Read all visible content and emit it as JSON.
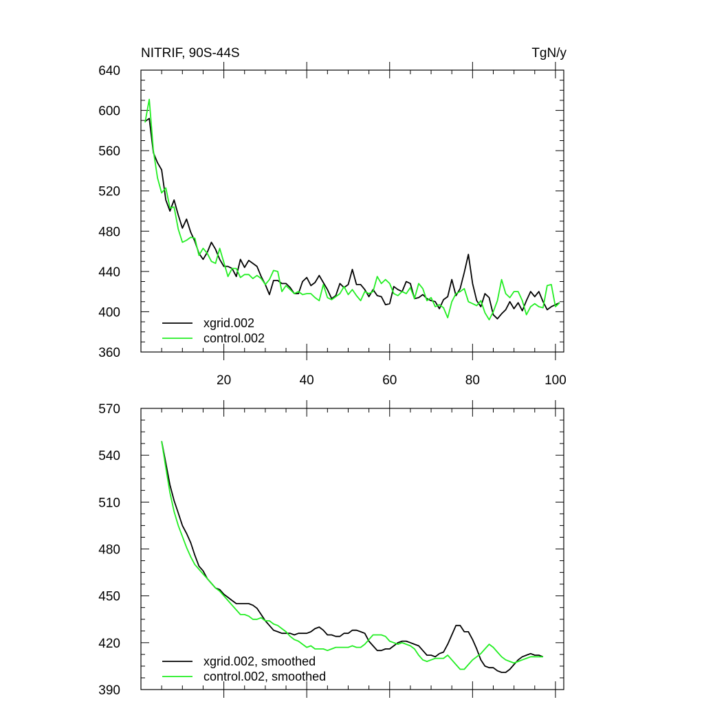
{
  "chart_data": [
    {
      "type": "line",
      "title_left": "NITRIF, 90S-44S",
      "title_right": "TgN/y",
      "xlabel": "",
      "ylabel": "",
      "xlim": [
        0,
        102
      ],
      "ylim": [
        360,
        640
      ],
      "xticks": [
        20,
        40,
        60,
        80,
        100
      ],
      "yticks": [
        360,
        400,
        440,
        480,
        520,
        560,
        600,
        640
      ],
      "x_tick_labels_shown": true,
      "legend_position": "bottom-left",
      "series": [
        {
          "name": "xgrid.002",
          "color": "#000000",
          "x": [
            1,
            2,
            3,
            4,
            5,
            6,
            7,
            8,
            9,
            10,
            11,
            12,
            13,
            14,
            15,
            16,
            17,
            18,
            19,
            20,
            21,
            22,
            23,
            24,
            25,
            26,
            27,
            28,
            29,
            30,
            31,
            32,
            33,
            34,
            35,
            36,
            37,
            38,
            39,
            40,
            41,
            42,
            43,
            44,
            45,
            46,
            47,
            48,
            49,
            50,
            51,
            52,
            53,
            54,
            55,
            56,
            57,
            58,
            59,
            60,
            61,
            62,
            63,
            64,
            65,
            66,
            67,
            68,
            69,
            70,
            71,
            72,
            73,
            74,
            75,
            76,
            77,
            78,
            79,
            80,
            81,
            82,
            83,
            84,
            85,
            86,
            87,
            88,
            89,
            90,
            91,
            92,
            93,
            94,
            95,
            96,
            97,
            98,
            99,
            100,
            101
          ],
          "values": [
            589,
            592,
            558,
            548,
            541,
            511,
            500,
            511,
            496,
            483,
            492,
            479,
            470,
            458,
            452,
            459,
            469,
            462,
            452,
            445,
            445,
            443,
            435,
            452,
            444,
            451,
            448,
            445,
            435,
            427,
            417,
            431,
            431,
            428,
            428,
            424,
            418,
            418,
            430,
            434,
            426,
            429,
            436,
            429,
            422,
            413,
            416,
            428,
            424,
            427,
            442,
            427,
            427,
            422,
            415,
            422,
            416,
            415,
            407,
            408,
            425,
            422,
            420,
            430,
            428,
            413,
            414,
            417,
            413,
            411,
            410,
            403,
            412,
            415,
            432,
            416,
            423,
            439,
            457,
            428,
            411,
            405,
            418,
            414,
            397,
            393,
            398,
            402,
            410,
            403,
            409,
            401,
            411,
            420,
            415,
            420,
            410,
            402,
            405,
            407,
            409
          ]
        },
        {
          "name": "control.002",
          "color": "#22ee22",
          "x": [
            1,
            2,
            3,
            4,
            5,
            6,
            7,
            8,
            9,
            10,
            11,
            12,
            13,
            14,
            15,
            16,
            17,
            18,
            19,
            20,
            21,
            22,
            23,
            24,
            25,
            26,
            27,
            28,
            29,
            30,
            31,
            32,
            33,
            34,
            35,
            36,
            37,
            38,
            39,
            40,
            41,
            42,
            43,
            44,
            45,
            46,
            47,
            48,
            49,
            50,
            51,
            52,
            53,
            54,
            55,
            56,
            57,
            58,
            59,
            60,
            61,
            62,
            63,
            64,
            65,
            66,
            67,
            68,
            69,
            70,
            71,
            72,
            73,
            74,
            75,
            76,
            77,
            78,
            79,
            80,
            81,
            82,
            83,
            84,
            85,
            86,
            87,
            88,
            89,
            90,
            91,
            92,
            93,
            94,
            95,
            96,
            97,
            98,
            99,
            100,
            101
          ],
          "values": [
            588,
            611,
            560,
            533,
            518,
            523,
            503,
            504,
            482,
            469,
            471,
            474,
            473,
            456,
            463,
            458,
            450,
            448,
            463,
            449,
            435,
            443,
            443,
            434,
            437,
            437,
            433,
            436,
            433,
            427,
            432,
            441,
            440,
            420,
            426,
            422,
            418,
            420,
            417,
            418,
            418,
            414,
            411,
            427,
            414,
            412,
            415,
            418,
            425,
            417,
            422,
            416,
            411,
            420,
            418,
            420,
            435,
            428,
            432,
            428,
            418,
            416,
            420,
            418,
            424,
            413,
            428,
            423,
            411,
            414,
            405,
            407,
            404,
            394,
            410,
            418,
            420,
            423,
            410,
            408,
            406,
            411,
            399,
            392,
            400,
            411,
            432,
            418,
            414,
            420,
            420,
            411,
            397,
            405,
            408,
            405,
            404,
            426,
            427,
            405,
            409
          ]
        }
      ]
    },
    {
      "type": "line",
      "title_left": "",
      "title_right": "",
      "xlabel": "",
      "ylabel": "",
      "xlim": [
        0,
        102
      ],
      "ylim": [
        390,
        570
      ],
      "xticks": [
        20,
        40,
        60,
        80,
        100
      ],
      "yticks": [
        390,
        420,
        450,
        480,
        510,
        540,
        570
      ],
      "x_tick_labels_shown": false,
      "legend_position": "bottom-left",
      "series": [
        {
          "name": "xgrid.002, smoothed",
          "color": "#000000",
          "x": [
            5,
            6,
            7,
            8,
            9,
            10,
            11,
            12,
            13,
            14,
            15,
            16,
            17,
            18,
            19,
            20,
            21,
            22,
            23,
            24,
            25,
            26,
            27,
            28,
            29,
            30,
            31,
            32,
            33,
            34,
            35,
            36,
            37,
            38,
            39,
            40,
            41,
            42,
            43,
            44,
            45,
            46,
            47,
            48,
            49,
            50,
            51,
            52,
            53,
            54,
            55,
            56,
            57,
            58,
            59,
            60,
            61,
            62,
            63,
            64,
            65,
            66,
            67,
            68,
            69,
            70,
            71,
            72,
            73,
            74,
            75,
            76,
            77,
            78,
            79,
            80,
            81,
            82,
            83,
            84,
            85,
            86,
            87,
            88,
            89,
            90,
            91,
            92,
            93,
            94,
            95,
            96,
            97
          ],
          "values": [
            549,
            535,
            521,
            511,
            503,
            495,
            490,
            484,
            476,
            469,
            466,
            461,
            458,
            455,
            454,
            451,
            449,
            447,
            445,
            445,
            445,
            445,
            444,
            442,
            438,
            434,
            431,
            428,
            427,
            426,
            426,
            426,
            425,
            426,
            426,
            426,
            427,
            429,
            430,
            428,
            425,
            425,
            424,
            424,
            426,
            426,
            428,
            428,
            427,
            426,
            421,
            418,
            415,
            415,
            416,
            416,
            418,
            420,
            421,
            421,
            420,
            419,
            418,
            415,
            412,
            412,
            411,
            413,
            414,
            419,
            425,
            431,
            431,
            427,
            427,
            422,
            416,
            409,
            405,
            404,
            404,
            402,
            401,
            401,
            403,
            406,
            409,
            411,
            412,
            413,
            412,
            412,
            411
          ]
        },
        {
          "name": "control.002, smoothed",
          "color": "#22ee22",
          "x": [
            5,
            6,
            7,
            8,
            9,
            10,
            11,
            12,
            13,
            14,
            15,
            16,
            17,
            18,
            19,
            20,
            21,
            22,
            23,
            24,
            25,
            26,
            27,
            28,
            29,
            30,
            31,
            32,
            33,
            34,
            35,
            36,
            37,
            38,
            39,
            40,
            41,
            42,
            43,
            44,
            45,
            46,
            47,
            48,
            49,
            50,
            51,
            52,
            53,
            54,
            55,
            56,
            57,
            58,
            59,
            60,
            61,
            62,
            63,
            64,
            65,
            66,
            67,
            68,
            69,
            70,
            71,
            72,
            73,
            74,
            75,
            76,
            77,
            78,
            79,
            80,
            81,
            82,
            83,
            84,
            85,
            86,
            87,
            88,
            89,
            90,
            91,
            92,
            93,
            94,
            95,
            96,
            97
          ],
          "values": [
            549,
            532,
            516,
            504,
            495,
            488,
            481,
            475,
            470,
            467,
            464,
            461,
            458,
            455,
            453,
            450,
            447,
            444,
            441,
            438,
            438,
            437,
            435,
            435,
            436,
            434,
            434,
            432,
            431,
            429,
            427,
            424,
            422,
            421,
            419,
            417,
            418,
            416,
            416,
            416,
            415,
            416,
            417,
            417,
            417,
            417,
            418,
            417,
            417,
            419,
            422,
            425,
            425,
            425,
            424,
            421,
            420,
            419,
            420,
            419,
            418,
            416,
            412,
            409,
            408,
            409,
            410,
            410,
            410,
            412,
            409,
            406,
            403,
            403,
            406,
            409,
            411,
            413,
            416,
            419,
            417,
            414,
            411,
            409,
            408,
            407,
            408,
            409,
            410,
            411,
            411,
            411,
            411
          ]
        }
      ]
    }
  ]
}
